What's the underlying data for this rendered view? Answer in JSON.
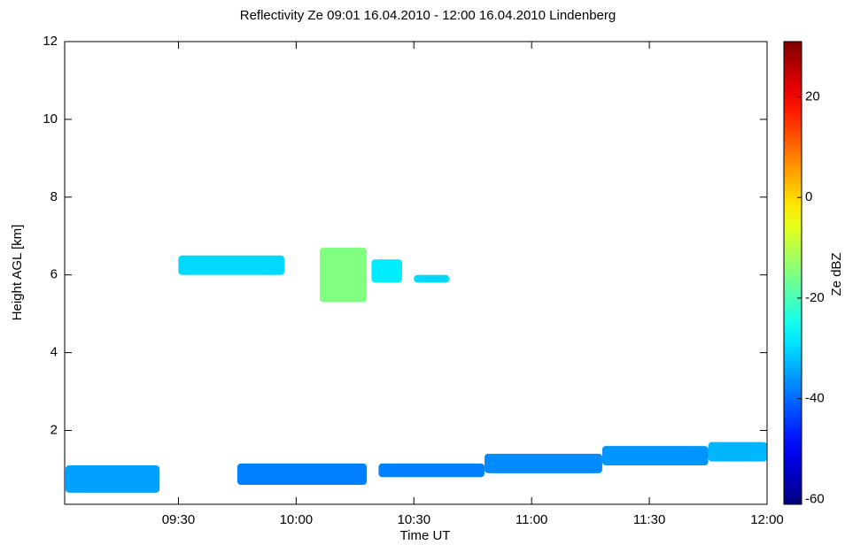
{
  "chart_data": {
    "type": "time-height",
    "title": "Reflectivity Ze   09:01 16.04.2010 - 12:00 16.04.2010 Lindenberg",
    "x_label": "Time UT",
    "y_label": "Height AGL [km]",
    "colorbar_label": "Ze dBZ",
    "xlim": [
      9.0167,
      12.0
    ],
    "xticks": [
      {
        "value": 9.5,
        "label": "09:30"
      },
      {
        "value": 10.0,
        "label": "10:00"
      },
      {
        "value": 10.5,
        "label": "10:30"
      },
      {
        "value": 11.0,
        "label": "11:00"
      },
      {
        "value": 11.5,
        "label": "11:30"
      },
      {
        "value": 12.0,
        "label": "12:00"
      }
    ],
    "ylim": [
      0.1,
      12
    ],
    "yticks": [
      2,
      4,
      6,
      8,
      10,
      12
    ],
    "zlim": [
      -61,
      31
    ],
    "zticks": [
      -60,
      -40,
      -20,
      0,
      20
    ],
    "colormap": "jet",
    "echoes": [
      {
        "x0": 9.02,
        "x1": 9.42,
        "bottom": 0.4,
        "top": 1.1,
        "ze": -35
      },
      {
        "x0": 9.75,
        "x1": 10.3,
        "bottom": 0.6,
        "top": 1.15,
        "ze": -38
      },
      {
        "x0": 10.35,
        "x1": 10.8,
        "bottom": 0.8,
        "top": 1.15,
        "ze": -38
      },
      {
        "x0": 10.8,
        "x1": 11.3,
        "bottom": 0.9,
        "top": 1.4,
        "ze": -37
      },
      {
        "x0": 11.3,
        "x1": 11.75,
        "bottom": 1.1,
        "top": 1.6,
        "ze": -36
      },
      {
        "x0": 11.75,
        "x1": 12.0,
        "bottom": 1.2,
        "top": 1.7,
        "ze": -33
      },
      {
        "x0": 9.5,
        "x1": 9.95,
        "bottom": 6.0,
        "top": 6.5,
        "ze": -30
      },
      {
        "x0": 10.1,
        "x1": 10.3,
        "bottom": 5.3,
        "top": 6.7,
        "ze": -15
      },
      {
        "x0": 10.32,
        "x1": 10.45,
        "bottom": 5.8,
        "top": 6.4,
        "ze": -28
      },
      {
        "x0": 10.5,
        "x1": 10.65,
        "bottom": 5.8,
        "top": 6.0,
        "ze": -30
      }
    ]
  }
}
